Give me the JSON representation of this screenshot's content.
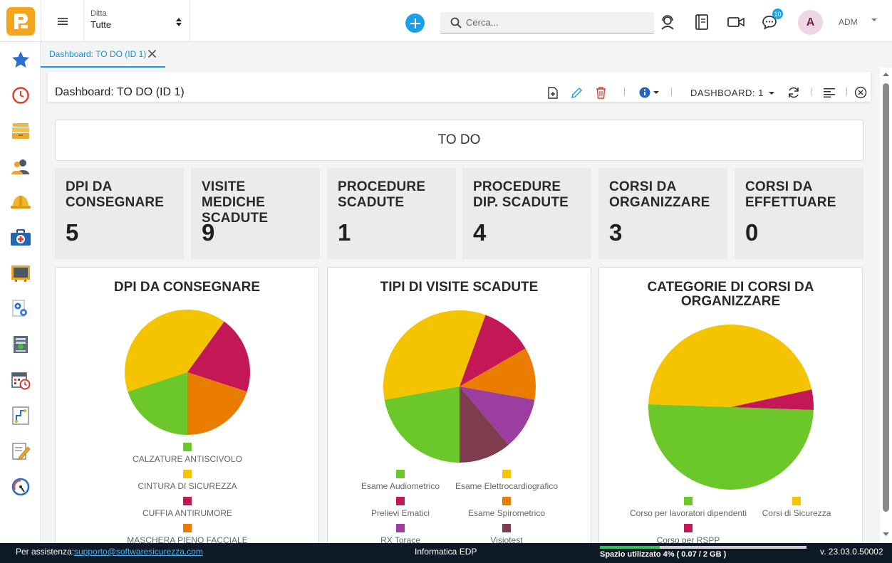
{
  "topbar": {
    "ditta_label": "Ditta",
    "ditta_value": "Tutte",
    "search_placeholder": "Cerca...",
    "chat_badge": "10",
    "avatar_letter": "A",
    "user": "ADM"
  },
  "tab": {
    "label": "Dashboard: TO DO (ID 1)"
  },
  "header": {
    "title": "Dashboard: TO DO (ID 1)",
    "dashboard_select": "DASHBOARD: 1"
  },
  "banner": "TO DO",
  "stats": [
    {
      "label": "DPI DA CONSEGNARE",
      "value": "5"
    },
    {
      "label": "VISITE MEDICHE SCADUTE",
      "value": "9"
    },
    {
      "label": "PROCEDURE SCADUTE",
      "value": "1"
    },
    {
      "label": "PROCEDURE DIP. SCADUTE",
      "value": "4"
    },
    {
      "label": "CORSI DA ORGANIZZARE",
      "value": "3"
    },
    {
      "label": "CORSI DA EFFETTUARE",
      "value": "0"
    }
  ],
  "colors": {
    "green": "#6cc72b",
    "yellow": "#f5c400",
    "crimson": "#c41856",
    "orange": "#ea7d00",
    "purple": "#9c3ea0",
    "maroon": "#7e3c4e",
    "accent": "#1aa0e8"
  },
  "chart_data": [
    {
      "type": "pie",
      "title": "DPI DA CONSEGNARE",
      "categories": [
        "CALZATURE ANTISCIVOLO",
        "CINTURA DI SICUREZZA",
        "CUFFIA ANTIRUMORE",
        "MASCHERA PIENO FACCIALE"
      ],
      "values": [
        1,
        2,
        1,
        1
      ],
      "colors": [
        "#6cc72b",
        "#f5c400",
        "#c41856",
        "#ea7d00"
      ]
    },
    {
      "type": "pie",
      "title": "TIPI DI VISITE SCADUTE",
      "categories": [
        "Esame Audiometrico",
        "Esame Elettrocardiografico",
        "Prelievi Ematici",
        "Esame Spirometrico",
        "RX Torace",
        "Visiotest"
      ],
      "values": [
        2,
        3,
        1,
        1,
        1,
        1
      ],
      "colors": [
        "#6cc72b",
        "#f5c400",
        "#c41856",
        "#ea7d00",
        "#9c3ea0",
        "#7e3c4e"
      ]
    },
    {
      "type": "pie",
      "title": "CATEGORIE DI CORSI DA ORGANIZZARE",
      "categories": [
        "Corso per lavoratori dipendenti",
        "Corsi di Sicurezza",
        "Corso per RSPP"
      ],
      "values": [
        0.5,
        0.46,
        0.04
      ],
      "colors": [
        "#6cc72b",
        "#f5c400",
        "#c41856"
      ]
    }
  ],
  "footer": {
    "assist_label": "Per assistenza:",
    "assist_email": "supporto@softwaresicurezza.com",
    "company": "Informatica EDP",
    "space": "Spazio utilizzato 4% ( 0.07 / 2 GB )",
    "space_fraction": 0.04,
    "version": "v. 23.03.0.50002"
  }
}
